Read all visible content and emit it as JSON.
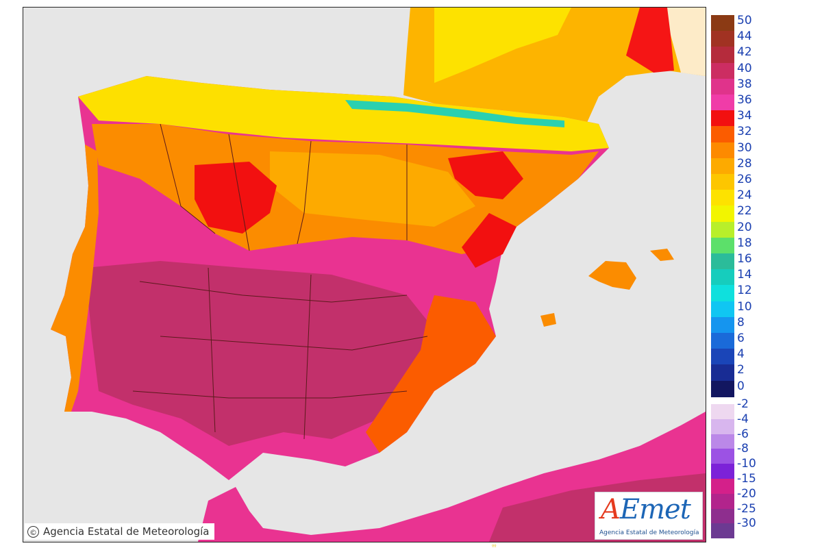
{
  "map": {
    "title": "",
    "copyright_text": "Agencia Estatal de Meteorología",
    "copyright_symbol": "©",
    "logo": {
      "text_main": "AEmet",
      "text_sub": "Agencia Estatal de Meteorología"
    },
    "footer_mark": "ºº",
    "land_colors": {
      "cool_north": "#fde800",
      "warm_north": "#fdb000",
      "plateau": "#fb8c00",
      "hot": "#f51515",
      "very_hot": "#e93391",
      "extreme": "#c2306b",
      "mountain": "#2ad0b0",
      "sea": "#e6e6e6",
      "foreign_land": "#fdebc8"
    }
  },
  "legend": {
    "units": "",
    "positive_scale": [
      {
        "label": "50",
        "color": "#8b3a14"
      },
      {
        "label": "44",
        "color": "#a13222"
      },
      {
        "label": "42",
        "color": "#b52b3c"
      },
      {
        "label": "40",
        "color": "#cc2d62"
      },
      {
        "label": "38",
        "color": "#e0338b"
      },
      {
        "label": "36",
        "color": "#f03ca8"
      },
      {
        "label": "34",
        "color": "#f21010"
      },
      {
        "label": "32",
        "color": "#fb5c00"
      },
      {
        "label": "30",
        "color": "#fd8a00"
      },
      {
        "label": "28",
        "color": "#fdaa00"
      },
      {
        "label": "26",
        "color": "#fdc600"
      },
      {
        "label": "24",
        "color": "#fde200"
      },
      {
        "label": "22",
        "color": "#f2f500"
      },
      {
        "label": "20",
        "color": "#b8ef2a"
      },
      {
        "label": "18",
        "color": "#5ce06a"
      },
      {
        "label": "16",
        "color": "#2bbc9a"
      },
      {
        "label": "14",
        "color": "#16cdbd"
      },
      {
        "label": "12",
        "color": "#0fe0dd"
      },
      {
        "label": "10",
        "color": "#10c6f2"
      },
      {
        "label": "8",
        "color": "#1595ef"
      },
      {
        "label": "6",
        "color": "#1a6ad9"
      },
      {
        "label": "4",
        "color": "#1a45b8"
      },
      {
        "label": "2",
        "color": "#182c94"
      },
      {
        "label": "0",
        "color": "#121660"
      }
    ],
    "negative_scale": [
      {
        "label": "-2",
        "color": "#eed8f0"
      },
      {
        "label": "-4",
        "color": "#d8b6ee"
      },
      {
        "label": "-6",
        "color": "#bb88e8"
      },
      {
        "label": "-8",
        "color": "#9c52e4"
      },
      {
        "label": "-10",
        "color": "#7c22d8"
      },
      {
        "label": "-15",
        "color": "#d4208a"
      },
      {
        "label": "-20",
        "color": "#b2248c"
      },
      {
        "label": "-25",
        "color": "#8e2e8e"
      },
      {
        "label": "-30",
        "color": "#6c3a92"
      }
    ]
  }
}
